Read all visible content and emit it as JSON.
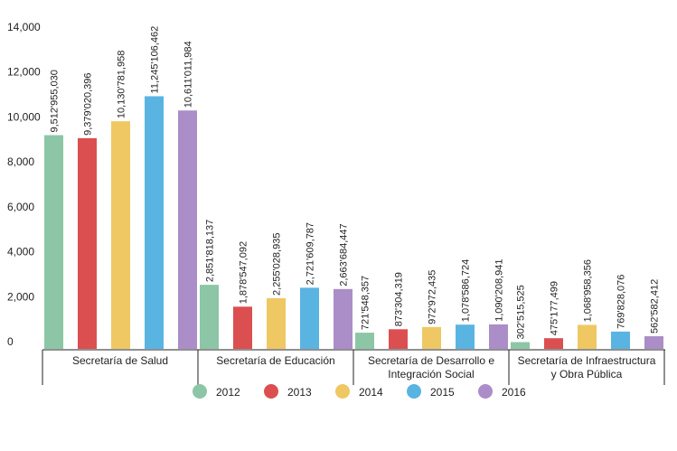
{
  "chart_data": {
    "type": "bar",
    "categories": [
      [
        "Secretaría de Salud"
      ],
      [
        "Secretaría de Educación"
      ],
      [
        "Secretaría de Desarrollo e",
        "Integración Social"
      ],
      [
        "Secretaría de Infraestructura",
        "y Obra Pública"
      ]
    ],
    "series": [
      {
        "name": "2012",
        "color": "#8dc6a6",
        "values": [
          9512.95503,
          2851.818137,
          721.548357,
          302.515525
        ],
        "labels": [
          "9,512'955,030",
          "2,851'818,137",
          "721'548,357",
          "302'515,525"
        ]
      },
      {
        "name": "2013",
        "color": "#dc4f50",
        "values": [
          9379.020396,
          1878.547092,
          873.304319,
          475.177499
        ],
        "labels": [
          "9,379'020,396",
          "1,878'547,092",
          "873'304,319",
          "475'177,499"
        ]
      },
      {
        "name": "2014",
        "color": "#efc863",
        "values": [
          10130.781958,
          2255.028935,
          972.972435,
          1068.958356
        ],
        "labels": [
          "10,130'781,958",
          "2,255'028,935",
          "972'972,435",
          "1,068'958,356"
        ]
      },
      {
        "name": "2015",
        "color": "#5ab4e2",
        "values": [
          11245.106462,
          2721.609787,
          1078.586724,
          769.828076
        ],
        "labels": [
          "11,245'106,462",
          "2,721'609,787",
          "1,078'586,724",
          "769'828,076"
        ]
      },
      {
        "name": "2016",
        "color": "#ab8dc8",
        "values": [
          10611.011984,
          2663.684447,
          1090.208941,
          562.582412
        ],
        "labels": [
          "10,611'011,984",
          "2,663'684,447",
          "1,090'208,941",
          "562'582,412"
        ]
      }
    ],
    "yticks": [
      "0",
      "2,000",
      "4,000",
      "6,000",
      "8,000",
      "10,000",
      "12,000",
      "14,000"
    ],
    "ylim": [
      0,
      14000
    ],
    "grid": false,
    "legend": "bottom-center",
    "title": "",
    "xlabel": "",
    "ylabel": ""
  }
}
